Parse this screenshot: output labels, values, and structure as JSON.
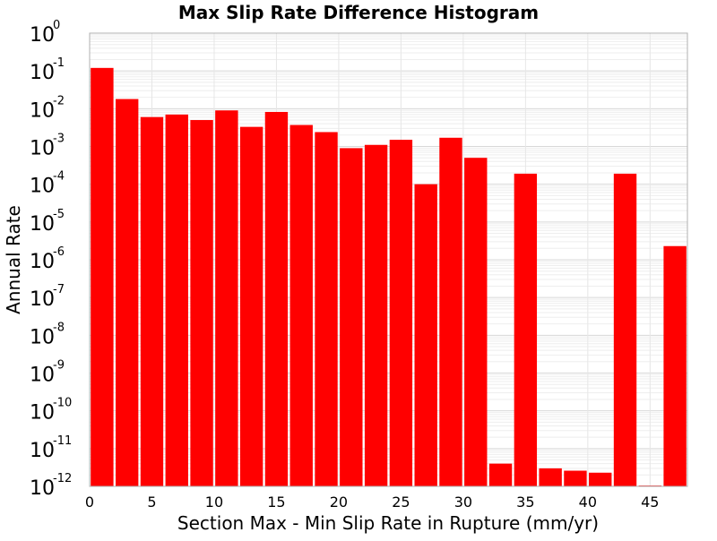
{
  "chart_data": {
    "type": "bar",
    "title": "Max Slip Rate Difference Histogram",
    "xlabel": "Section Max - Min Slip Rate in Rupture (mm/yr)",
    "ylabel": "Annual Rate",
    "xlim": [
      0,
      48
    ],
    "ylim": [
      1e-12,
      1
    ],
    "y_scale": "log",
    "x_ticks": [
      0,
      5,
      10,
      15,
      20,
      25,
      30,
      35,
      40,
      45
    ],
    "y_tick_exponents": [
      0,
      -1,
      -2,
      -3,
      -4,
      -5,
      -6,
      -7,
      -8,
      -9,
      -10,
      -11,
      -12
    ],
    "y_tick_base": "10",
    "bar_width": 2,
    "x": [
      1,
      3,
      5,
      7,
      9,
      11,
      13,
      15,
      17,
      19,
      21,
      23,
      25,
      27,
      29,
      31,
      33,
      35,
      37,
      39,
      41,
      43,
      45,
      47
    ],
    "values": [
      0.12,
      0.018,
      0.006,
      0.007,
      0.005,
      0.009,
      0.0033,
      0.0082,
      0.0037,
      0.0024,
      0.0009,
      0.0011,
      0.0015,
      0.0001,
      0.0017,
      0.0005,
      4e-12,
      0.00019,
      3e-12,
      2.6e-12,
      2.3e-12,
      0.00019,
      1.05e-12,
      2.3e-06
    ],
    "bar_color": "#ff0000",
    "grid": true
  }
}
